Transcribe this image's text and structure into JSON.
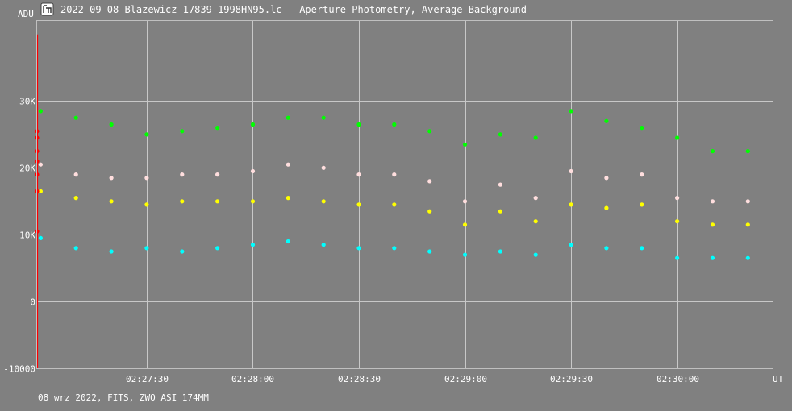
{
  "window": {
    "icon": "light-curve-app-icon",
    "title": "2022_09_08_Blazewicz_17839_1998HN95.lc - Aperture Photometry, Average Background"
  },
  "footer": {
    "info": "08 wrz 2022, FITS, ZWO ASI 174MM"
  },
  "chart_data": {
    "type": "scatter",
    "title": "2022_09_08_Blazewicz_17839_1998HN95.lc - Aperture Photometry, Average Background",
    "ylabel": "ADU",
    "xlabel": "UT",
    "ylim": [
      -10000,
      42000
    ],
    "yticks": [
      {
        "value": 30000,
        "label": "30K"
      },
      {
        "value": 20000,
        "label": "20K"
      },
      {
        "value": 10000,
        "label": "10K"
      },
      {
        "value": 0,
        "label": "0"
      },
      {
        "value": -10000,
        "label": "-10000"
      }
    ],
    "xlim": [
      "02:26:59",
      "02:30:27"
    ],
    "xticks": [
      "02:27:30",
      "02:28:00",
      "02:28:30",
      "02:29:00",
      "02:29:30",
      "02:30:00"
    ],
    "grid": true,
    "series": [
      {
        "color": "#00ff00",
        "x": [
          "02:27:00",
          "02:27:10",
          "02:27:20",
          "02:27:30",
          "02:27:40",
          "02:27:50",
          "02:28:00",
          "02:28:10",
          "02:28:20",
          "02:28:30",
          "02:28:40",
          "02:28:50",
          "02:29:00",
          "02:29:10",
          "02:29:20",
          "02:29:30",
          "02:29:40",
          "02:29:50",
          "02:30:00",
          "02:30:10",
          "02:30:20"
        ],
        "y": [
          28500,
          27500,
          26500,
          25000,
          25500,
          26000,
          26500,
          27500,
          27500,
          26500,
          26500,
          25500,
          23500,
          25000,
          24500,
          28500,
          27000,
          26000,
          24500,
          22500,
          22500
        ]
      },
      {
        "color": "#ffdede",
        "x": [
          "02:27:00",
          "02:27:10",
          "02:27:20",
          "02:27:30",
          "02:27:40",
          "02:27:50",
          "02:28:00",
          "02:28:10",
          "02:28:20",
          "02:28:30",
          "02:28:40",
          "02:28:50",
          "02:29:00",
          "02:29:10",
          "02:29:20",
          "02:29:30",
          "02:29:40",
          "02:29:50",
          "02:30:00",
          "02:30:10",
          "02:30:20"
        ],
        "y": [
          20500,
          19000,
          18500,
          18500,
          19000,
          19000,
          19500,
          20500,
          20000,
          19000,
          19000,
          18000,
          15000,
          17500,
          15500,
          19500,
          18500,
          19000,
          15500,
          15000,
          15000
        ]
      },
      {
        "color": "#ffff00",
        "x": [
          "02:27:00",
          "02:27:10",
          "02:27:20",
          "02:27:30",
          "02:27:40",
          "02:27:50",
          "02:28:00",
          "02:28:10",
          "02:28:20",
          "02:28:30",
          "02:28:40",
          "02:28:50",
          "02:29:00",
          "02:29:10",
          "02:29:20",
          "02:29:30",
          "02:29:40",
          "02:29:50",
          "02:30:00",
          "02:30:10",
          "02:30:20"
        ],
        "y": [
          16500,
          15500,
          15000,
          14500,
          15000,
          15000,
          15000,
          15500,
          15000,
          14500,
          14500,
          13500,
          11500,
          13500,
          12000,
          14500,
          14000,
          14500,
          12000,
          11500,
          11500
        ]
      },
      {
        "color": "#00ffff",
        "x": [
          "02:27:00",
          "02:27:10",
          "02:27:20",
          "02:27:30",
          "02:27:40",
          "02:27:50",
          "02:28:00",
          "02:28:10",
          "02:28:20",
          "02:28:30",
          "02:28:40",
          "02:28:50",
          "02:29:00",
          "02:29:10",
          "02:29:20",
          "02:29:30",
          "02:29:40",
          "02:29:50",
          "02:30:00",
          "02:30:10",
          "02:30:20"
        ],
        "y": [
          9500,
          8000,
          7500,
          8000,
          7500,
          8000,
          8500,
          9000,
          8500,
          8000,
          8000,
          7500,
          7000,
          7500,
          7000,
          8500,
          8000,
          8000,
          6500,
          6500,
          6500
        ]
      },
      {
        "color": "#ff0000",
        "x": [
          "02:26:59",
          "02:26:59",
          "02:26:59",
          "02:26:59",
          "02:26:59",
          "02:26:59",
          "02:26:59"
        ],
        "y": [
          25500,
          24500,
          22500,
          21000,
          19000,
          16500,
          10500
        ]
      }
    ]
  }
}
